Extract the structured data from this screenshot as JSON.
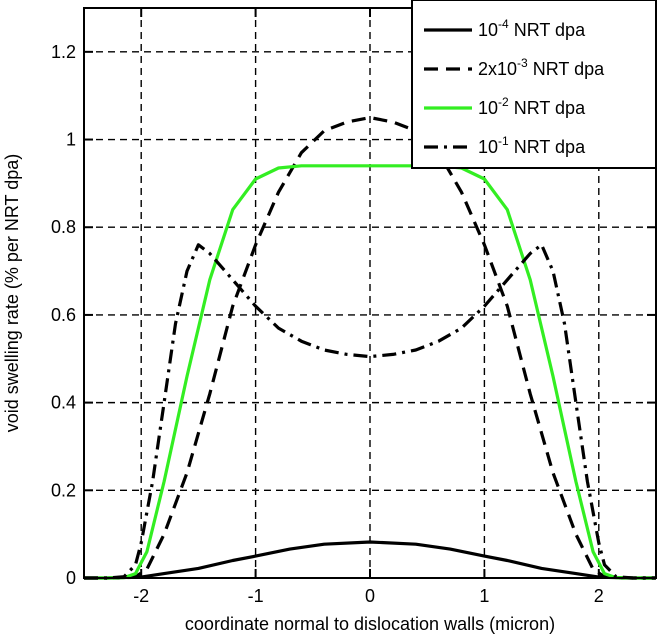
{
  "chart_data": {
    "type": "line",
    "title": "",
    "xlabel": "coordinate normal to dislocation walls (micron)",
    "ylabel": "void swelling rate (% per NRT dpa)",
    "xlim": [
      -2.5,
      2.5
    ],
    "ylim": [
      0,
      1.3
    ],
    "xticks": [
      -2,
      -1,
      0,
      1,
      2
    ],
    "xtick_labels": [
      "-2",
      "-1",
      "0",
      "1",
      "2"
    ],
    "yticks": [
      0,
      0.2,
      0.4,
      0.6,
      0.8,
      1,
      1.2
    ],
    "ytick_labels": [
      "0",
      "0.2",
      "0.4",
      "0.6",
      "0.8",
      "1",
      "1.2"
    ],
    "grid": true,
    "legend_position": "top-right",
    "series": [
      {
        "legend": {
          "pre": "10",
          "sup": "-4",
          "post": " NRT dpa"
        },
        "color": "#000000",
        "dash": "",
        "x": [
          -2.5,
          -2.3,
          -2.0,
          -1.8,
          -1.5,
          -1.2,
          -1.0,
          -0.7,
          -0.4,
          0.0,
          0.4,
          0.7,
          1.0,
          1.2,
          1.5,
          1.8,
          2.0,
          2.3,
          2.5
        ],
        "y": [
          0,
          0,
          0.002,
          0.01,
          0.022,
          0.04,
          0.05,
          0.066,
          0.077,
          0.082,
          0.077,
          0.066,
          0.05,
          0.04,
          0.022,
          0.01,
          0.002,
          0,
          0
        ]
      },
      {
        "legend": {
          "pre": "2x10",
          "sup": "-3",
          "post": " NRT dpa"
        },
        "color": "#000000",
        "dash": "14,8",
        "x": [
          -2.5,
          -2.2,
          -2.05,
          -1.95,
          -1.8,
          -1.6,
          -1.4,
          -1.2,
          -1.0,
          -0.8,
          -0.6,
          -0.4,
          -0.2,
          0.0,
          0.2,
          0.4,
          0.6,
          0.8,
          1.0,
          1.2,
          1.4,
          1.6,
          1.8,
          1.95,
          2.05,
          2.2,
          2.5
        ],
        "y": [
          0,
          0,
          0.003,
          0.02,
          0.1,
          0.24,
          0.42,
          0.62,
          0.76,
          0.88,
          0.97,
          1.02,
          1.04,
          1.05,
          1.04,
          1.02,
          0.97,
          0.88,
          0.76,
          0.62,
          0.42,
          0.24,
          0.1,
          0.02,
          0.003,
          0,
          0
        ]
      },
      {
        "legend": {
          "pre": "10",
          "sup": "-2",
          "post": " NRT dpa"
        },
        "color": "#33ee22",
        "dash": "",
        "x": [
          -2.5,
          -2.3,
          -2.15,
          -2.05,
          -1.95,
          -1.8,
          -1.6,
          -1.4,
          -1.2,
          -1.0,
          -0.8,
          -0.6,
          -0.4,
          0.0,
          0.4,
          0.6,
          0.8,
          1.0,
          1.2,
          1.4,
          1.6,
          1.8,
          1.95,
          2.05,
          2.15,
          2.3,
          2.5
        ],
        "y": [
          0,
          0,
          0.001,
          0.01,
          0.06,
          0.22,
          0.46,
          0.68,
          0.84,
          0.91,
          0.935,
          0.94,
          0.94,
          0.94,
          0.94,
          0.94,
          0.935,
          0.91,
          0.84,
          0.68,
          0.46,
          0.22,
          0.06,
          0.01,
          0.001,
          0,
          0
        ]
      },
      {
        "legend": {
          "pre": "10",
          "sup": "-1",
          "post": " NRT dpa"
        },
        "color": "#000000",
        "dash": "14,6,3,6",
        "x": [
          -2.5,
          -2.3,
          -2.15,
          -2.05,
          -2.0,
          -1.9,
          -1.8,
          -1.7,
          -1.6,
          -1.5,
          -1.4,
          -1.2,
          -1.0,
          -0.8,
          -0.6,
          -0.4,
          -0.2,
          0.0,
          0.2,
          0.4,
          0.6,
          0.8,
          1.0,
          1.2,
          1.4,
          1.5,
          1.6,
          1.7,
          1.8,
          1.9,
          2.0,
          2.05,
          2.15,
          2.3,
          2.5
        ],
        "y": [
          0,
          0,
          0.003,
          0.03,
          0.08,
          0.22,
          0.4,
          0.58,
          0.7,
          0.76,
          0.74,
          0.68,
          0.62,
          0.57,
          0.54,
          0.52,
          0.51,
          0.505,
          0.51,
          0.52,
          0.54,
          0.57,
          0.62,
          0.68,
          0.74,
          0.76,
          0.7,
          0.58,
          0.4,
          0.22,
          0.08,
          0.03,
          0.003,
          0,
          0
        ]
      }
    ]
  }
}
